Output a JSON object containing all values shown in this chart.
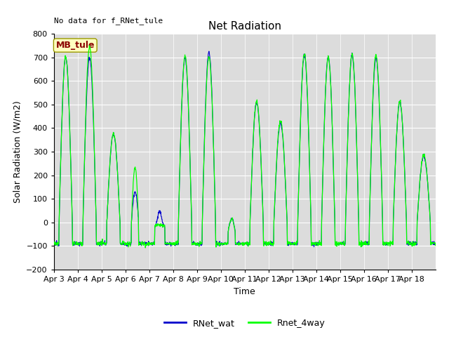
{
  "title": "Net Radiation",
  "xlabel": "Time",
  "ylabel": "Solar Radiation (W/m2)",
  "ylim": [
    -200,
    800
  ],
  "no_data_text": "No data for f_RNet_tule",
  "station_label": "MB_tule",
  "line1_label": "RNet_wat",
  "line2_label": "Rnet_4way",
  "line1_color": "#0000cc",
  "line2_color": "#00ff00",
  "bg_color": "#dcdcdc",
  "yticks": [
    -200,
    -100,
    0,
    100,
    200,
    300,
    400,
    500,
    600,
    700,
    800
  ],
  "xtick_labels": [
    "Apr 3",
    "Apr 4",
    "Apr 5",
    "Apr 6",
    "Apr 7",
    "Apr 8",
    "Apr 9",
    "Apr 10",
    "Apr 11",
    "Apr 12",
    "Apr 13",
    "Apr 14",
    "Apr 15",
    "Apr 16",
    "Apr 17",
    "Apr 18"
  ],
  "n_days": 16,
  "pts_per_day": 96,
  "day_peaks_wat": [
    700,
    700,
    375,
    130,
    70,
    700,
    720,
    55,
    510,
    420,
    710,
    700,
    710,
    700,
    510,
    280
  ],
  "day_peaks_4way": [
    700,
    745,
    375,
    235,
    5,
    705,
    700,
    55,
    510,
    430,
    715,
    700,
    710,
    710,
    515,
    285
  ],
  "night_base": -90,
  "grid_color": "white",
  "title_fontsize": 11,
  "label_fontsize": 9,
  "tick_fontsize": 8
}
